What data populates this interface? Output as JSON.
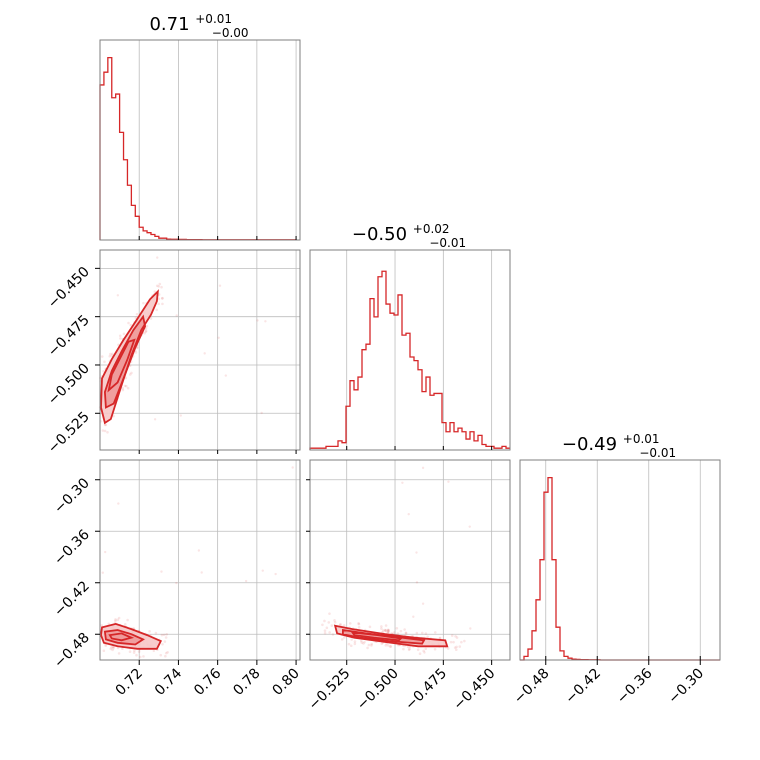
{
  "chart_data": {
    "type": "corner",
    "color": "#d62728",
    "parameters": [
      {
        "title_value": "0.71",
        "title_plus": "+0.01",
        "title_minus": "−0.00",
        "range": [
          0.7,
          0.802
        ],
        "ticks": [
          0.72,
          0.74,
          0.76,
          0.78,
          0.8
        ],
        "tick_labels": [
          "0.72",
          "0.74",
          "0.76",
          "0.78",
          "0.80"
        ]
      },
      {
        "title_value": "−0.50",
        "title_plus": "+0.02",
        "title_minus": "−0.01",
        "range": [
          -0.544,
          -0.4405
        ],
        "ticks": [
          -0.525,
          -0.5,
          -0.475,
          -0.45
        ],
        "tick_labels": [
          "−0.525",
          "−0.500",
          "−0.475",
          "−0.450"
        ]
      },
      {
        "title_value": "−0.49",
        "title_plus": "+0.01",
        "title_minus": "−0.01",
        "range": [
          -0.51,
          -0.277
        ],
        "ticks": [
          -0.48,
          -0.42,
          -0.36,
          -0.3
        ],
        "tick_labels": [
          "−0.48",
          "−0.42",
          "−0.36",
          "−0.30"
        ]
      }
    ],
    "histograms": [
      {
        "param": 0,
        "bin_start": 0.7,
        "bin_width": 0.002,
        "counts": [
          0.85,
          0.92,
          1.0,
          0.78,
          0.8,
          0.59,
          0.44,
          0.3,
          0.19,
          0.13,
          0.07,
          0.05,
          0.04,
          0.03,
          0.02,
          0.01,
          0.01,
          0.005,
          0.004,
          0.004,
          0.003,
          0.003,
          0.002,
          0.002,
          0.002,
          0.002,
          0.001,
          0.001,
          0.001,
          0.001,
          0.001,
          0.001,
          0.001,
          0.001,
          0.001,
          0.001,
          0.001,
          0.001,
          0.001,
          0.001,
          0.001,
          0.001,
          0.001,
          0.001,
          0.001,
          0.001,
          0.001,
          0.001,
          0.001,
          0.001
        ]
      },
      {
        "param": 1,
        "bin_start": -0.544,
        "bin_width": 0.00207,
        "counts": [
          0.01,
          0.01,
          0.01,
          0.01,
          0.02,
          0.02,
          0.02,
          0.05,
          0.04,
          0.24,
          0.38,
          0.33,
          0.4,
          0.55,
          0.58,
          0.83,
          0.73,
          0.95,
          0.98,
          0.8,
          0.75,
          0.74,
          0.85,
          0.63,
          0.64,
          0.51,
          0.49,
          0.44,
          0.32,
          0.4,
          0.3,
          0.31,
          0.31,
          0.15,
          0.1,
          0.15,
          0.1,
          0.12,
          0.1,
          0.06,
          0.1,
          0.05,
          0.08,
          0.03,
          0.02,
          0.02,
          0.01,
          0.01,
          0.02,
          0.01
        ]
      },
      {
        "param": 2,
        "bin_start": -0.51,
        "bin_width": 0.00466,
        "counts": [
          0.0,
          0.02,
          0.06,
          0.16,
          0.33,
          0.55,
          0.92,
          1.0,
          0.55,
          0.18,
          0.05,
          0.02,
          0.01,
          0.005,
          0.003,
          0.002,
          0.002,
          0.001,
          0.001,
          0.001,
          0.0,
          0.0,
          0.0,
          0.0,
          0.0,
          0.0,
          0.0,
          0.0,
          0.0,
          0.0,
          0.0,
          0.0,
          0.0,
          0.0,
          0.0,
          0.0,
          0.0,
          0.0,
          0.0,
          0.0,
          0.0,
          0.0,
          0.0,
          0.0,
          0.0,
          0.0,
          0.0,
          0.0,
          0.0,
          0.0
        ]
      }
    ],
    "pairs": [
      {
        "x_param": 0,
        "y_param": 1,
        "contours": [
          {
            "level": "outer",
            "points": [
              [
                0.7025,
                -0.53
              ],
              [
                0.7055,
                -0.528
              ],
              [
                0.7105,
                -0.512
              ],
              [
                0.716,
                -0.495
              ],
              [
                0.721,
                -0.482
              ],
              [
                0.726,
                -0.474
              ],
              [
                0.729,
                -0.467
              ],
              [
                0.7295,
                -0.462
              ],
              [
                0.7255,
                -0.466
              ],
              [
                0.7185,
                -0.477
              ],
              [
                0.712,
                -0.487
              ],
              [
                0.706,
                -0.497
              ],
              [
                0.701,
                -0.507
              ],
              [
                0.7005,
                -0.522
              ]
            ]
          },
          {
            "level": "mid",
            "points": [
              [
                0.703,
                -0.522
              ],
              [
                0.707,
                -0.52
              ],
              [
                0.712,
                -0.507
              ],
              [
                0.718,
                -0.491
              ],
              [
                0.723,
                -0.48
              ],
              [
                0.722,
                -0.475
              ],
              [
                0.717,
                -0.482
              ],
              [
                0.711,
                -0.493
              ],
              [
                0.706,
                -0.503
              ],
              [
                0.7025,
                -0.514
              ]
            ]
          },
          {
            "level": "inner",
            "points": [
              [
                0.7045,
                -0.513
              ],
              [
                0.709,
                -0.509
              ],
              [
                0.714,
                -0.497
              ],
              [
                0.7175,
                -0.487
              ],
              [
                0.7145,
                -0.488
              ],
              [
                0.71,
                -0.497
              ],
              [
                0.706,
                -0.505
              ]
            ]
          }
        ]
      },
      {
        "x_param": 0,
        "y_param": 2,
        "contours": [
          {
            "level": "outer",
            "points": [
              [
                0.701,
                -0.472
              ],
              [
                0.708,
                -0.468
              ],
              [
                0.716,
                -0.474
              ],
              [
                0.724,
                -0.481
              ],
              [
                0.731,
                -0.488
              ],
              [
                0.729,
                -0.497
              ],
              [
                0.719,
                -0.497
              ],
              [
                0.709,
                -0.494
              ],
              [
                0.702,
                -0.49
              ],
              [
                0.7005,
                -0.481
              ]
            ]
          },
          {
            "level": "mid",
            "points": [
              [
                0.7025,
                -0.477
              ],
              [
                0.709,
                -0.475
              ],
              [
                0.716,
                -0.48
              ],
              [
                0.722,
                -0.486
              ],
              [
                0.718,
                -0.492
              ],
              [
                0.709,
                -0.49
              ],
              [
                0.703,
                -0.486
              ]
            ]
          },
          {
            "level": "inner",
            "points": [
              [
                0.705,
                -0.481
              ],
              [
                0.711,
                -0.479
              ],
              [
                0.716,
                -0.484
              ],
              [
                0.711,
                -0.487
              ],
              [
                0.706,
                -0.485
              ]
            ]
          }
        ]
      },
      {
        "x_param": 1,
        "y_param": 2,
        "contours": [
          {
            "level": "outer",
            "points": [
              [
                -0.531,
                -0.47
              ],
              [
                -0.522,
                -0.474
              ],
              [
                -0.505,
                -0.48
              ],
              [
                -0.49,
                -0.484
              ],
              [
                -0.474,
                -0.487
              ],
              [
                -0.473,
                -0.494
              ],
              [
                -0.488,
                -0.494
              ],
              [
                -0.505,
                -0.489
              ],
              [
                -0.521,
                -0.484
              ],
              [
                -0.53,
                -0.479
              ]
            ]
          },
          {
            "level": "mid",
            "points": [
              [
                -0.527,
                -0.475
              ],
              [
                -0.515,
                -0.479
              ],
              [
                -0.5,
                -0.483
              ],
              [
                -0.485,
                -0.487
              ],
              [
                -0.486,
                -0.491
              ],
              [
                -0.503,
                -0.488
              ],
              [
                -0.518,
                -0.484
              ],
              [
                -0.527,
                -0.48
              ]
            ]
          },
          {
            "level": "inner",
            "points": [
              [
                -0.522,
                -0.478
              ],
              [
                -0.509,
                -0.481
              ],
              [
                -0.497,
                -0.485
              ],
              [
                -0.498,
                -0.487
              ],
              [
                -0.511,
                -0.484
              ],
              [
                -0.521,
                -0.481
              ]
            ]
          }
        ]
      }
    ],
    "grid": true
  }
}
